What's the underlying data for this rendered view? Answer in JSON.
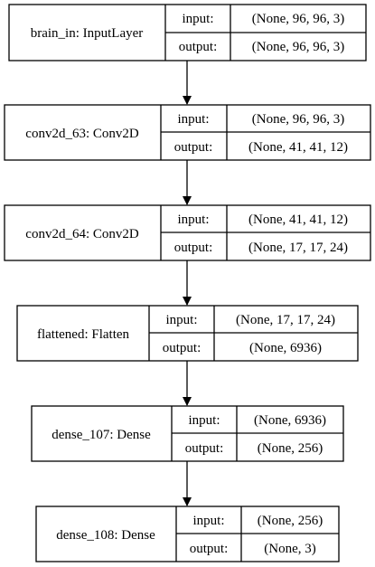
{
  "diagram": {
    "io_labels": {
      "input": "input:",
      "output": "output:"
    },
    "layers": [
      {
        "name": "brain_in: InputLayer",
        "input": "(None, 96, 96, 3)",
        "output": "(None, 96, 96, 3)"
      },
      {
        "name": "conv2d_63: Conv2D",
        "input": "(None, 96, 96, 3)",
        "output": "(None, 41, 41, 12)"
      },
      {
        "name": "conv2d_64: Conv2D",
        "input": "(None, 41, 41, 12)",
        "output": "(None, 17, 17, 24)"
      },
      {
        "name": "flattened: Flatten",
        "input": "(None, 17, 17, 24)",
        "output": "(None, 6936)"
      },
      {
        "name": "dense_107: Dense",
        "input": "(None, 6936)",
        "output": "(None, 256)"
      },
      {
        "name": "dense_108: Dense",
        "input": "(None, 256)",
        "output": "(None, 3)"
      }
    ],
    "colors": {
      "stroke": "#000000",
      "background": "#ffffff"
    }
  }
}
